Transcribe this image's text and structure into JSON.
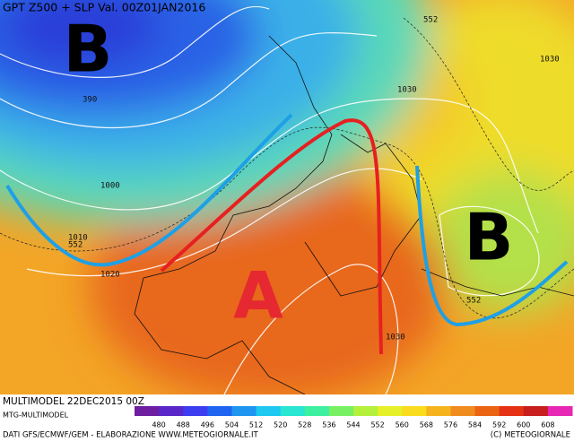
{
  "header": {
    "title": "GPT Z500 + SLP Val. 00Z01JAN2016"
  },
  "map": {
    "pressure_labels": [
      {
        "text": "B"
      },
      {
        "text": "B"
      },
      {
        "text": "A"
      }
    ],
    "contour_labels": [
      "552",
      "390",
      "1000",
      "1010",
      "552",
      "1020",
      "1030",
      "1030",
      "552",
      "1030"
    ]
  },
  "footer": {
    "model_run": "MULTIMODEL 22DEC2015 00Z",
    "model_name": "MTG-MULTIMODEL",
    "credits": "DATI GFS/ECMWF/GEM - ELABORAZIONE WWW.METEOGIORNALE.IT",
    "copyright": "(C) METEOGIORNALE"
  },
  "colorbar": {
    "labels": [
      "480",
      "488",
      "496",
      "504",
      "512",
      "520",
      "528",
      "536",
      "544",
      "552",
      "560",
      "568",
      "576",
      "584",
      "592",
      "600",
      "608"
    ],
    "colors": [
      "#6e1ea0",
      "#5a28c8",
      "#3c3cf0",
      "#1e64f0",
      "#1e96f0",
      "#1ec8f0",
      "#28e6d2",
      "#3cf0a0",
      "#78f064",
      "#b4f03c",
      "#e6f028",
      "#fadc1e",
      "#f5b41e",
      "#f08c1e",
      "#eb6414",
      "#e63214",
      "#c81e1e",
      "#e628b4"
    ]
  }
}
